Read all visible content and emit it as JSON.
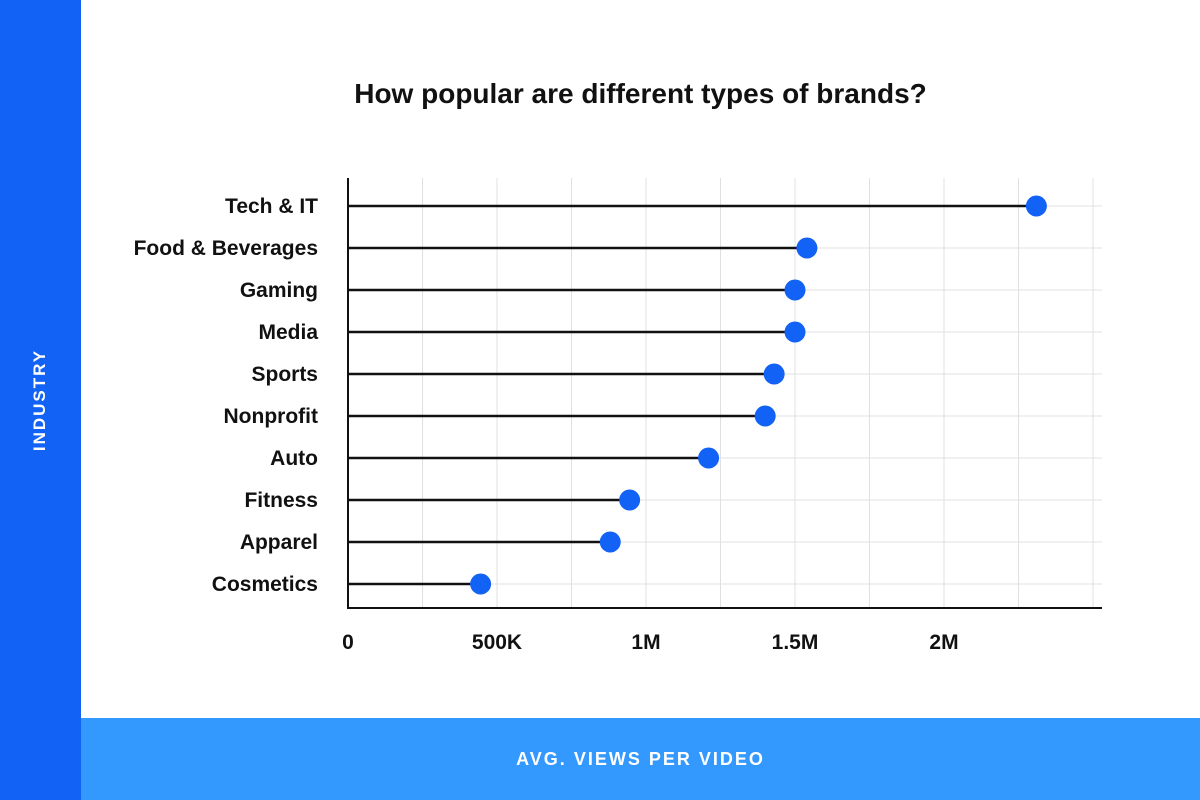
{
  "colors": {
    "accent": "#1262f5",
    "band_light": "#3399ff",
    "grid": "#e0e0e0",
    "text": "#111111"
  },
  "chart_data": {
    "type": "scatter",
    "title": "How popular are different types of brands?",
    "xlabel": "AVG. VIEWS PER VIDEO",
    "ylabel": "INDUSTRY",
    "xlim": [
      0,
      2550000
    ],
    "xticks": [
      0,
      500000,
      1000000,
      1500000,
      2000000
    ],
    "xtick_labels": [
      "0",
      "500K",
      "1M",
      "1.5M",
      "2M"
    ],
    "grid": true,
    "categories": [
      "Tech & IT",
      "Food & Beverages",
      "Gaming",
      "Media",
      "Sports",
      "Nonprofit",
      "Auto",
      "Fitness",
      "Apparel",
      "Cosmetics"
    ],
    "values": [
      2310000,
      1540000,
      1500000,
      1500000,
      1430000,
      1400000,
      1210000,
      945000,
      880000,
      445000
    ]
  }
}
